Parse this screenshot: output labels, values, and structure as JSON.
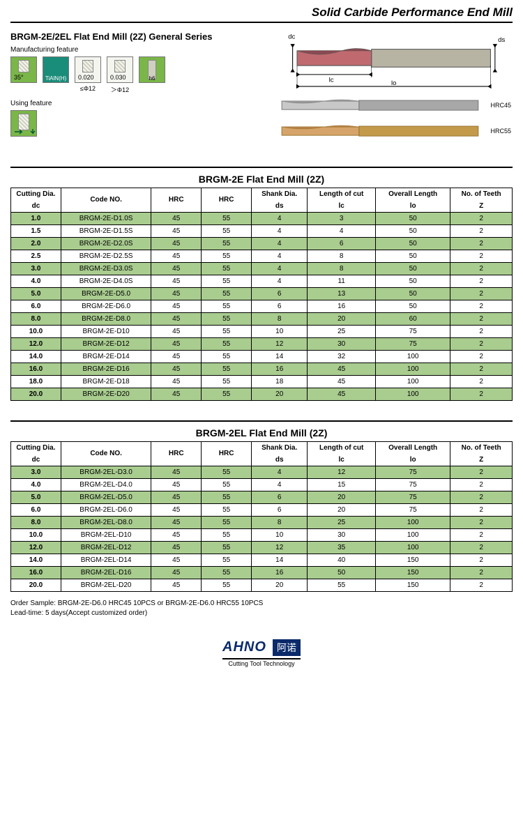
{
  "page_title": "Solid Carbide Performance End Mill",
  "product_title": "BRGM-2E/2EL   Flat End Mill (2Z) General Series",
  "labels": {
    "manufacturing": "Manufacturing feature",
    "using": "Using feature"
  },
  "feature_boxes": {
    "angle": "35°",
    "coating": "TiAlN(H)",
    "tol1": "0.020",
    "tol1_sub": "≤Φ12",
    "tol2": "0.030",
    "tol2_sub": "＞Φ12",
    "h6": "h6"
  },
  "diagram": {
    "dc": "dc",
    "ds": "ds",
    "lc": "lc",
    "lo": "lo",
    "shank_color": "#b8b4a4",
    "flute_color": "#c06a70",
    "outline": "#555"
  },
  "endmills": {
    "m1": {
      "label": "HRC45",
      "shank": "#a8a8a8",
      "flute": "#c8c8c8"
    },
    "m2": {
      "label": "HRC55",
      "shank": "#c29a4a",
      "flute": "#d6a46a"
    }
  },
  "table1": {
    "title": "BRGM-2E   Flat End Mill (2Z)",
    "head1": [
      "Cutting Dia.",
      "Code NO.",
      "HRC",
      "HRC",
      "Shank Dia.",
      "Length of cut",
      "Overall Length",
      "No. of Teeth"
    ],
    "head2": [
      "dc",
      "",
      "",
      "",
      "ds",
      "lc",
      "lo",
      "Z"
    ],
    "rows": [
      [
        "1.0",
        "BRGM-2E-D1.0S",
        "45",
        "55",
        "4",
        "3",
        "50",
        "2"
      ],
      [
        "1.5",
        "BRGM-2E-D1.5S",
        "45",
        "55",
        "4",
        "4",
        "50",
        "2"
      ],
      [
        "2.0",
        "BRGM-2E-D2.0S",
        "45",
        "55",
        "4",
        "6",
        "50",
        "2"
      ],
      [
        "2.5",
        "BRGM-2E-D2.5S",
        "45",
        "55",
        "4",
        "8",
        "50",
        "2"
      ],
      [
        "3.0",
        "BRGM-2E-D3.0S",
        "45",
        "55",
        "4",
        "8",
        "50",
        "2"
      ],
      [
        "4.0",
        "BRGM-2E-D4.0S",
        "45",
        "55",
        "4",
        "11",
        "50",
        "2"
      ],
      [
        "5.0",
        "BRGM-2E-D5.0",
        "45",
        "55",
        "6",
        "13",
        "50",
        "2"
      ],
      [
        "6.0",
        "BRGM-2E-D6.0",
        "45",
        "55",
        "6",
        "16",
        "50",
        "2"
      ],
      [
        "8.0",
        "BRGM-2E-D8.0",
        "45",
        "55",
        "8",
        "20",
        "60",
        "2"
      ],
      [
        "10.0",
        "BRGM-2E-D10",
        "45",
        "55",
        "10",
        "25",
        "75",
        "2"
      ],
      [
        "12.0",
        "BRGM-2E-D12",
        "45",
        "55",
        "12",
        "30",
        "75",
        "2"
      ],
      [
        "14.0",
        "BRGM-2E-D14",
        "45",
        "55",
        "14",
        "32",
        "100",
        "2"
      ],
      [
        "16.0",
        "BRGM-2E-D16",
        "45",
        "55",
        "16",
        "45",
        "100",
        "2"
      ],
      [
        "18.0",
        "BRGM-2E-D18",
        "45",
        "55",
        "18",
        "45",
        "100",
        "2"
      ],
      [
        "20.0",
        "BRGM-2E-D20",
        "45",
        "55",
        "20",
        "45",
        "100",
        "2"
      ]
    ]
  },
  "table2": {
    "title": "BRGM-2EL   Flat End Mill (2Z)",
    "head1": [
      "Cutting Dia.",
      "Code NO.",
      "HRC",
      "HRC",
      "Shank Dia.",
      "Length of cut",
      "Overall Length",
      "No. of Teeth"
    ],
    "head2": [
      "dc",
      "",
      "",
      "",
      "ds",
      "lc",
      "lo",
      "Z"
    ],
    "rows": [
      [
        "3.0",
        "BRGM-2EL-D3.0",
        "45",
        "55",
        "4",
        "12",
        "75",
        "2"
      ],
      [
        "4.0",
        "BRGM-2EL-D4.0",
        "45",
        "55",
        "4",
        "15",
        "75",
        "2"
      ],
      [
        "5.0",
        "BRGM-2EL-D5.0",
        "45",
        "55",
        "6",
        "20",
        "75",
        "2"
      ],
      [
        "6.0",
        "BRGM-2EL-D6.0",
        "45",
        "55",
        "6",
        "20",
        "75",
        "2"
      ],
      [
        "8.0",
        "BRGM-2EL-D8.0",
        "45",
        "55",
        "8",
        "25",
        "100",
        "2"
      ],
      [
        "10.0",
        "BRGM-2EL-D10",
        "45",
        "55",
        "10",
        "30",
        "100",
        "2"
      ],
      [
        "12.0",
        "BRGM-2EL-D12",
        "45",
        "55",
        "12",
        "35",
        "100",
        "2"
      ],
      [
        "14.0",
        "BRGM-2EL-D14",
        "45",
        "55",
        "14",
        "40",
        "150",
        "2"
      ],
      [
        "16.0",
        "BRGM-2EL-D16",
        "45",
        "55",
        "16",
        "50",
        "150",
        "2"
      ],
      [
        "20.0",
        "BRGM-2EL-D20",
        "45",
        "55",
        "20",
        "55",
        "150",
        "2"
      ]
    ]
  },
  "order_note_1": "Order Sample: BRGM-2E-D6.0 HRC45 10PCS or BRGM-2E-D6.0 HRC55 10PCS",
  "order_note_2": "Lead-time: 5 days(Accept customized order)",
  "logo": {
    "name": "AHNO",
    "cn": "阿诺",
    "tag": "Cutting Tool Technology"
  },
  "colors": {
    "alt_row": "#a9cc8f"
  }
}
